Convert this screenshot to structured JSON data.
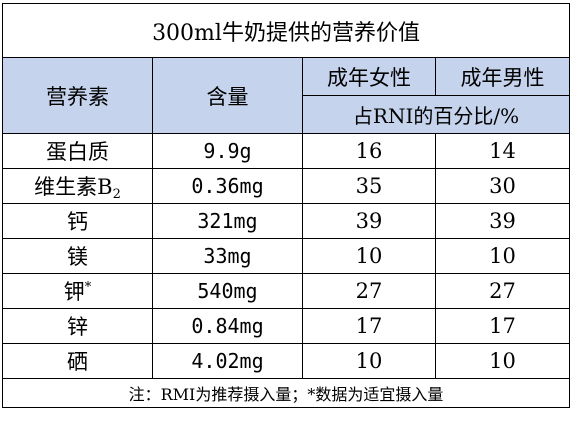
{
  "title": "300ml牛奶提供的营养价值",
  "headers": {
    "nutrient": "营养素",
    "amount": "含量",
    "female": "成年女性",
    "male": "成年男性",
    "rni": "占RNI的百分比/%"
  },
  "rows": [
    {
      "name": "蛋白质",
      "sub": "",
      "sup": "",
      "amount": "9.9g",
      "female": "16",
      "male": "14"
    },
    {
      "name": "维生素B",
      "sub": "2",
      "sup": "",
      "amount": "0.36mg",
      "female": "35",
      "male": "30"
    },
    {
      "name": "钙",
      "sub": "",
      "sup": "",
      "amount": "321mg",
      "female": "39",
      "male": "39"
    },
    {
      "name": "镁",
      "sub": "",
      "sup": "",
      "amount": "33mg",
      "female": "10",
      "male": "10"
    },
    {
      "name": "钾",
      "sub": "",
      "sup": "*",
      "amount": "540mg",
      "female": "27",
      "male": "27"
    },
    {
      "name": "锌",
      "sub": "",
      "sup": "",
      "amount": "0.84mg",
      "female": "17",
      "male": "17"
    },
    {
      "name": "硒",
      "sub": "",
      "sup": "",
      "amount": "4.02mg",
      "female": "10",
      "male": "10"
    }
  ],
  "note": "注：RMI为推荐摄入量；*数据为适宜摄入量",
  "colors": {
    "header_bg": "#c5d3ed",
    "border": "#000000"
  }
}
